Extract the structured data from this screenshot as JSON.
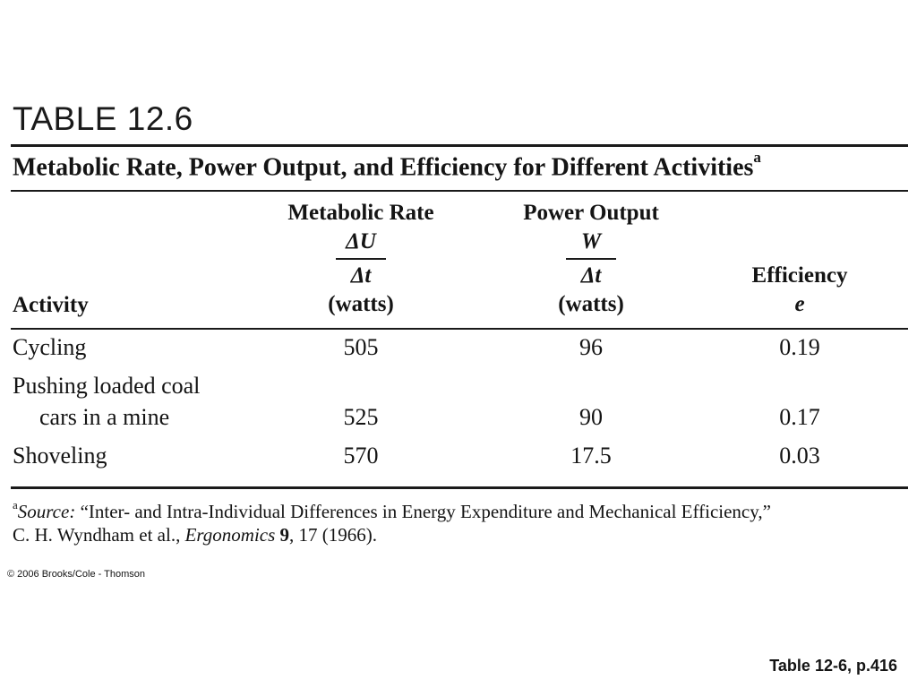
{
  "table_label": "TABLE 12.6",
  "caption": {
    "text": "Metabolic Rate, Power Output, and Efficiency for Different Activities",
    "footnote_marker": "a"
  },
  "headers": {
    "activity": "Activity",
    "metabolic": {
      "line1": "Metabolic Rate",
      "numerator": "ΔU",
      "denominator": "Δt",
      "unit": "(watts)"
    },
    "power": {
      "line1": "Power Output",
      "numerator": "W",
      "denominator": "Δt",
      "unit": "(watts)"
    },
    "efficiency": {
      "line1": "Efficiency",
      "symbol": "e"
    }
  },
  "rows": [
    {
      "activity_lines": [
        "Cycling"
      ],
      "metabolic": "505",
      "power": "96",
      "efficiency": "0.19"
    },
    {
      "activity_lines": [
        "Pushing loaded coal",
        "cars in a mine"
      ],
      "metabolic": "525",
      "power": "90",
      "efficiency": "0.17"
    },
    {
      "activity_lines": [
        "Shoveling"
      ],
      "metabolic": "570",
      "power": "17.5",
      "efficiency": "0.03"
    }
  ],
  "footnote": {
    "marker": "a",
    "source_label": "Source:",
    "line1_text": " “Inter- and Intra-Individual Differences in Energy Expenditure and Mechanical Efficiency,”",
    "line2_pre": "C. H. Wyndham et al., ",
    "journal": "Ergonomics",
    "volume": "9",
    "rest": ", 17 (1966)."
  },
  "copyright": "© 2006 Brooks/Cole - Thomson",
  "page_ref": "Table 12-6, p.416"
}
